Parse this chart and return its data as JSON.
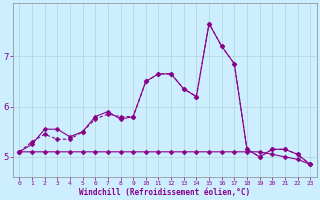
{
  "xlabel": "Windchill (Refroidissement éolien,°C)",
  "x": [
    0,
    1,
    2,
    3,
    4,
    5,
    6,
    7,
    8,
    9,
    10,
    11,
    12,
    13,
    14,
    15,
    16,
    17,
    18,
    19,
    20,
    21,
    22,
    23
  ],
  "s1": [
    5.1,
    5.1,
    5.1,
    5.1,
    5.1,
    5.1,
    5.1,
    5.1,
    5.1,
    5.1,
    5.1,
    5.1,
    5.1,
    5.1,
    5.1,
    5.1,
    5.1,
    5.1,
    5.1,
    5.1,
    5.05,
    5.0,
    4.95,
    4.85
  ],
  "s2": [
    5.1,
    5.3,
    5.45,
    5.35,
    5.35,
    5.5,
    5.75,
    5.85,
    5.8,
    5.8,
    6.5,
    6.65,
    6.65,
    6.35,
    6.2,
    7.65,
    7.2,
    6.85,
    5.15,
    5.0,
    5.15,
    5.15,
    5.05,
    4.85
  ],
  "s3": [
    5.1,
    5.25,
    5.55,
    5.55,
    5.4,
    5.5,
    5.8,
    5.9,
    5.75,
    5.8,
    6.5,
    6.65,
    6.65,
    6.35,
    6.2,
    7.65,
    7.2,
    6.85,
    5.15,
    5.0,
    5.15,
    5.15,
    5.05,
    4.85
  ],
  "line_color": "#880088",
  "bg_color": "#cceeff",
  "grid_color": "#aacccc",
  "yticks": [
    5,
    6,
    7
  ],
  "ylim": [
    4.6,
    8.05
  ],
  "xlim": [
    -0.5,
    23.5
  ]
}
